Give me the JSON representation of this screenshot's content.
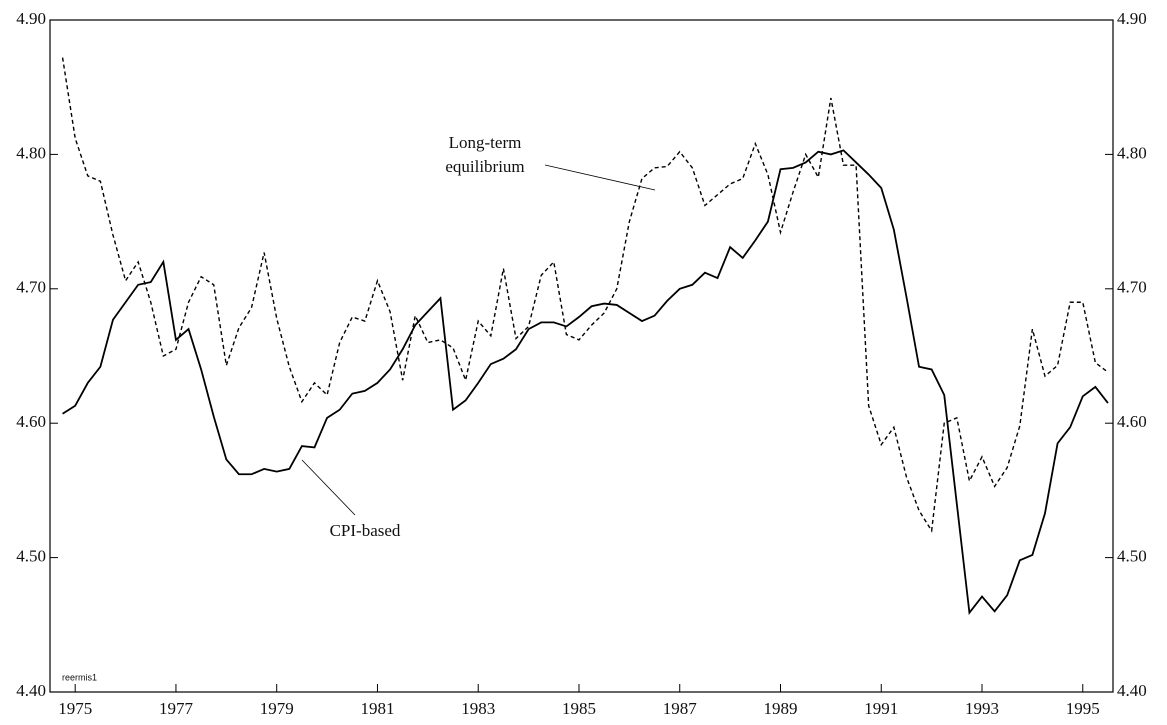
{
  "chart_data": {
    "type": "line",
    "x": [
      1974.75,
      1975,
      1975.25,
      1975.5,
      1975.75,
      1976,
      1976.25,
      1976.5,
      1976.75,
      1977,
      1977.25,
      1977.5,
      1977.75,
      1978,
      1978.25,
      1978.5,
      1978.75,
      1979,
      1979.25,
      1979.5,
      1979.75,
      1980,
      1980.25,
      1980.5,
      1980.75,
      1981,
      1981.25,
      1981.5,
      1981.75,
      1982,
      1982.25,
      1982.5,
      1982.75,
      1983,
      1983.25,
      1983.5,
      1983.75,
      1984,
      1984.25,
      1984.5,
      1984.75,
      1985,
      1985.25,
      1985.5,
      1985.75,
      1986,
      1986.25,
      1986.5,
      1986.75,
      1987,
      1987.25,
      1987.5,
      1987.75,
      1988,
      1988.25,
      1988.5,
      1988.75,
      1989,
      1989.25,
      1989.5,
      1989.75,
      1990,
      1990.25,
      1990.5,
      1990.75,
      1991,
      1991.25,
      1991.5,
      1991.75,
      1992,
      1992.25,
      1992.5,
      1992.75,
      1993,
      1993.25,
      1993.5,
      1993.75,
      1994,
      1994.25,
      1994.5,
      1994.75,
      1995,
      1995.25,
      1995.5
    ],
    "series": [
      {
        "name": "CPI-based",
        "color": "#000000",
        "dash": "solid",
        "values": [
          4.607,
          4.613,
          4.63,
          4.642,
          4.677,
          4.69,
          4.703,
          4.705,
          4.72,
          4.662,
          4.67,
          4.64,
          4.605,
          4.573,
          4.562,
          4.562,
          4.566,
          4.564,
          4.566,
          4.583,
          4.582,
          4.604,
          4.61,
          4.622,
          4.624,
          4.63,
          4.64,
          4.655,
          4.673,
          4.683,
          4.693,
          4.61,
          4.617,
          4.63,
          4.644,
          4.648,
          4.655,
          4.67,
          4.675,
          4.675,
          4.672,
          4.679,
          4.687,
          4.689,
          4.688,
          4.682,
          4.676,
          4.68,
          4.691,
          4.7,
          4.703,
          4.712,
          4.708,
          4.731,
          4.723,
          4.736,
          4.75,
          4.789,
          4.79,
          4.794,
          4.802,
          4.8,
          4.803,
          4.794,
          4.785,
          4.775,
          4.744,
          4.694,
          4.642,
          4.64,
          4.621,
          4.54,
          4.459,
          4.471,
          4.46,
          4.472,
          4.498,
          4.502,
          4.533,
          4.585,
          4.597,
          4.62,
          4.627,
          4.615
        ]
      },
      {
        "name": "Long-term equilibrium",
        "color": "#000000",
        "dash": "dashed",
        "values": [
          4.872,
          4.812,
          4.784,
          4.78,
          4.74,
          4.706,
          4.72,
          4.69,
          4.65,
          4.655,
          4.69,
          4.709,
          4.703,
          4.643,
          4.671,
          4.686,
          4.727,
          4.678,
          4.642,
          4.616,
          4.63,
          4.621,
          4.66,
          4.679,
          4.676,
          4.706,
          4.683,
          4.632,
          4.68,
          4.66,
          4.662,
          4.656,
          4.632,
          4.676,
          4.665,
          4.715,
          4.663,
          4.672,
          4.71,
          4.72,
          4.666,
          4.662,
          4.673,
          4.682,
          4.7,
          4.75,
          4.782,
          4.79,
          4.791,
          4.802,
          4.79,
          4.762,
          4.77,
          4.778,
          4.782,
          4.808,
          4.785,
          4.742,
          4.772,
          4.8,
          4.783,
          4.842,
          4.792,
          4.792,
          4.613,
          4.584,
          4.597,
          4.56,
          4.535,
          4.52,
          4.6,
          4.604,
          4.557,
          4.575,
          4.553,
          4.567,
          4.598,
          4.67,
          4.635,
          4.643,
          4.69,
          4.69,
          4.645,
          4.638
        ]
      }
    ],
    "annotations": [
      "Long-term",
      "equilibrium",
      "CPI-based",
      "reermis1"
    ],
    "xlim": [
      1974.5,
      1995.6
    ],
    "xticks": [
      1975,
      1977,
      1979,
      1981,
      1983,
      1985,
      1987,
      1989,
      1991,
      1993,
      1995
    ],
    "ylim": [
      4.4,
      4.9
    ],
    "yticks": [
      {
        "value": 4.4,
        "label": "4.40"
      },
      {
        "value": 4.5,
        "label": "4.50"
      },
      {
        "value": 4.6,
        "label": "4.60"
      },
      {
        "value": 4.7,
        "label": "4.70"
      },
      {
        "value": 4.8,
        "label": "4.80"
      },
      {
        "value": 4.9,
        "label": "4.90"
      }
    ],
    "grid": false
  }
}
